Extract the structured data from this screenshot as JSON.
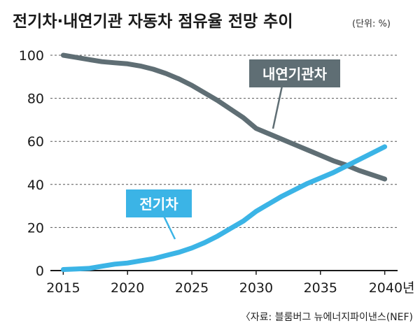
{
  "chart_data": {
    "type": "line",
    "title": "전기차·내연기관 자동차 점유율 전망 추이",
    "unit_note": "(단위: %)",
    "source": "〈자료: 블룸버그 뉴에너지파이낸스(NEF)",
    "x_tick_labels": [
      "2015",
      "2020",
      "2025",
      "2030",
      "2035",
      "2040년"
    ],
    "x_ticks": [
      2015,
      2020,
      2025,
      2030,
      2035,
      2040
    ],
    "y_ticks": [
      0,
      20,
      40,
      60,
      80,
      100
    ],
    "ylim": [
      0,
      100
    ],
    "xlim": [
      2014,
      2041
    ],
    "grid": true,
    "series": [
      {
        "name": "내연기관차",
        "color": "#5f6e74",
        "x": [
          2015,
          2016,
          2017,
          2018,
          2019,
          2020,
          2021,
          2022,
          2023,
          2024,
          2025,
          2026,
          2027,
          2028,
          2029,
          2030,
          2031,
          2032,
          2033,
          2034,
          2035,
          2036,
          2037,
          2038,
          2039,
          2040
        ],
        "values": [
          100,
          99,
          98,
          97,
          96.5,
          96,
          95,
          93.5,
          91.5,
          89,
          86,
          82.5,
          79,
          75,
          71,
          66,
          63.5,
          61,
          58.5,
          56,
          53.5,
          51,
          49,
          46.5,
          44.5,
          42.5
        ]
      },
      {
        "name": "전기차",
        "color": "#3bb4e6",
        "x": [
          2015,
          2016,
          2017,
          2018,
          2019,
          2020,
          2021,
          2022,
          2023,
          2024,
          2025,
          2026,
          2027,
          2028,
          2029,
          2030,
          2031,
          2032,
          2033,
          2034,
          2035,
          2036,
          2037,
          2038,
          2039,
          2040
        ],
        "values": [
          0.5,
          0.7,
          1,
          2,
          3,
          3.5,
          4.5,
          5.5,
          7,
          8.5,
          10.5,
          13,
          16,
          19.5,
          23,
          27.5,
          31,
          34.5,
          37.5,
          40.5,
          43,
          45.5,
          48.5,
          51.5,
          54.5,
          57.5
        ]
      }
    ]
  }
}
